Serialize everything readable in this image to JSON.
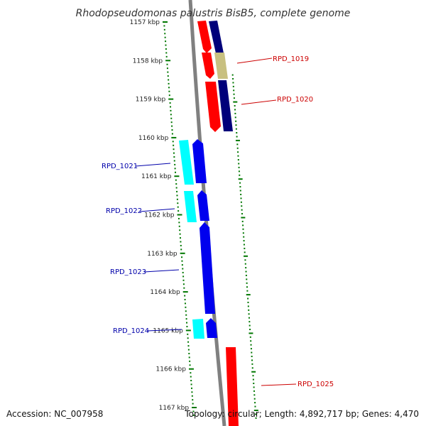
{
  "title": "Rhodopseudomonas palustris BisB5, complete genome",
  "accession": "Accession: NC_007958",
  "topology": "Topology: circular; Length: 4,892,717 bp; Genes: 4,470",
  "colors": {
    "red": "#ff0000",
    "navy": "#00007a",
    "khaki": "#c8c080",
    "blue": "#0000ee",
    "cyan": "#00ffff",
    "ring": "#808080",
    "tick": "#007700",
    "fwd_label": "#cc0000",
    "rev_label": "#0000aa"
  },
  "ticks": [
    {
      "kbp": 1157,
      "label": "1157 kbp"
    },
    {
      "kbp": 1158,
      "label": "1158 kbp"
    },
    {
      "kbp": 1159,
      "label": "1159 kbp"
    },
    {
      "kbp": 1160,
      "label": "1160 kbp"
    },
    {
      "kbp": 1161,
      "label": "1161 kbp"
    },
    {
      "kbp": 1162,
      "label": "1162 kbp"
    },
    {
      "kbp": 1163,
      "label": "1163 kbp"
    },
    {
      "kbp": 1164,
      "label": "1164 kbp"
    },
    {
      "kbp": 1165,
      "label": "1165 kbp"
    },
    {
      "kbp": 1166,
      "label": "1166 kbp"
    },
    {
      "kbp": 1167,
      "label": "1167 kbp"
    }
  ],
  "genes": [
    {
      "name": "RPD_1019",
      "strand": "forward"
    },
    {
      "name": "RPD_1020",
      "strand": "forward"
    },
    {
      "name": "RPD_1021",
      "strand": "reverse"
    },
    {
      "name": "RPD_1022",
      "strand": "reverse"
    },
    {
      "name": "RPD_1023",
      "strand": "reverse"
    },
    {
      "name": "RPD_1024",
      "strand": "reverse"
    },
    {
      "name": "RPD_1025",
      "strand": "forward"
    }
  ]
}
